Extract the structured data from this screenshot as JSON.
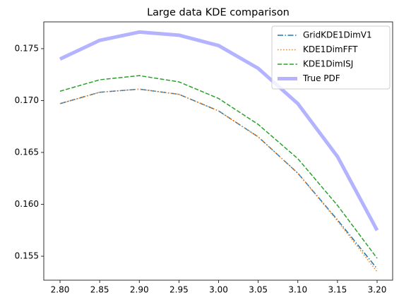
{
  "chart_data": {
    "type": "line",
    "title": "Large data KDE comparison",
    "x": [
      2.8,
      2.85,
      2.9,
      2.95,
      3.0,
      3.05,
      3.1,
      3.15,
      3.2
    ],
    "series": [
      {
        "name": "GridKDE1DimV1",
        "color": "#1f77b4",
        "dash": "dashdot",
        "width": 1.5,
        "values": [
          0.1697,
          0.1708,
          0.1711,
          0.1706,
          0.169,
          0.1665,
          0.163,
          0.1585,
          0.1538
        ]
      },
      {
        "name": "KDE1DimFFT",
        "color": "#ff7f0e",
        "dash": "dotted",
        "width": 1.5,
        "values": [
          0.1697,
          0.1708,
          0.1711,
          0.1706,
          0.169,
          0.1665,
          0.163,
          0.1584,
          0.1535
        ]
      },
      {
        "name": "KDE1DimISJ",
        "color": "#2ca02c",
        "dash": "dashed",
        "width": 1.5,
        "values": [
          0.1709,
          0.172,
          0.1724,
          0.1718,
          0.1702,
          0.1677,
          0.1644,
          0.1599,
          0.1548
        ]
      },
      {
        "name": "True PDF",
        "color": "#b3b3ff",
        "dash": "solid",
        "width": 5,
        "values": [
          0.174,
          0.1758,
          0.1766,
          0.1763,
          0.1753,
          0.1731,
          0.1697,
          0.1646,
          0.1575
        ]
      }
    ],
    "xlim": [
      2.7795,
      3.2196
    ],
    "ylim": [
      0.15269,
      0.17758
    ],
    "xticks": [
      {
        "value": 2.8,
        "label": "2.80"
      },
      2.85,
      {
        "value": 2.9,
        "label": "2.90"
      },
      2.95,
      {
        "value": 3.0,
        "label": "3.00"
      },
      3.05,
      {
        "value": 3.1,
        "label": "3.10"
      },
      3.15,
      {
        "value": 3.2,
        "label": "3.20"
      }
    ],
    "yticks": [
      0.155,
      {
        "value": 0.16,
        "label": "0.160"
      },
      0.165,
      {
        "value": 0.17,
        "label": "0.170"
      },
      0.175
    ],
    "legend": "upper right",
    "grid": false
  }
}
